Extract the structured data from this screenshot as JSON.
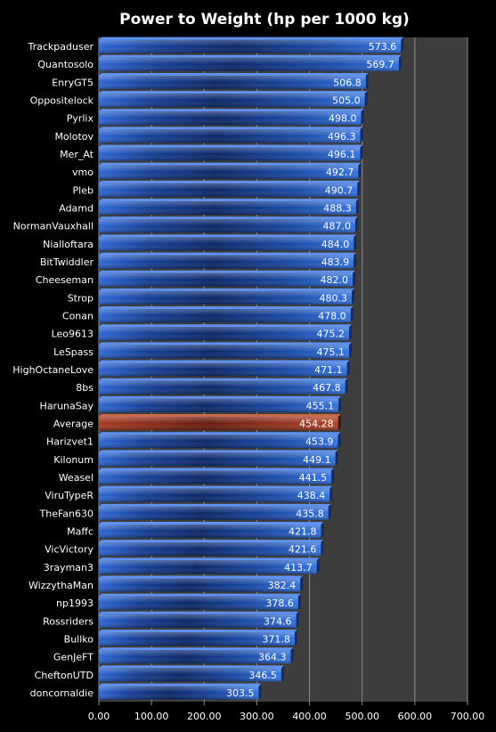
{
  "chart_data": {
    "type": "bar",
    "orientation": "horizontal",
    "title": "Power to Weight (hp per 1000 kg)",
    "categories": [
      "Trackpaduser",
      "Quantosolo",
      "EnryGT5",
      "Oppositelock",
      "Pyrlix",
      "Molotov",
      "Mer_At",
      "vmo",
      "Pleb",
      "Adamd",
      "NormanVauxhall",
      "Nialloftara",
      "BitTwiddler",
      "Cheeseman",
      "Strop",
      "Conan",
      "Leo9613",
      "LeSpass",
      "HighOctaneLove",
      "8bs",
      "HarunaSay",
      "Average",
      "Harizvet1",
      "Kilonum",
      "Weasel",
      "ViruTypeR",
      "TheFan630",
      "Maffc",
      "VicVictory",
      "3rayman3",
      "WizzythaMan",
      "np1993",
      "Rossriders",
      "Bullko",
      "GenJeFT",
      "CheftonUTD",
      "doncornaldie"
    ],
    "values": [
      573.6,
      569.7,
      506.8,
      505.0,
      498.0,
      496.3,
      496.1,
      492.7,
      490.7,
      488.3,
      487.0,
      484.0,
      483.9,
      482.0,
      480.3,
      478.0,
      475.2,
      475.1,
      471.1,
      467.8,
      455.1,
      454.28,
      453.9,
      449.1,
      441.5,
      438.4,
      435.8,
      421.8,
      421.6,
      413.7,
      382.4,
      378.6,
      374.6,
      371.8,
      364.3,
      346.5,
      303.5
    ],
    "value_labels": [
      "573.6",
      "569.7",
      "506.8",
      "505.0",
      "498.0",
      "496.3",
      "496.1",
      "492.7",
      "490.7",
      "488.3",
      "487.0",
      "484.0",
      "483.9",
      "482.0",
      "480.3",
      "478.0",
      "475.2",
      "475.1",
      "471.1",
      "467.8",
      "455.1",
      "454.28",
      "453.9",
      "449.1",
      "441.5",
      "438.4",
      "435.8",
      "421.8",
      "421.6",
      "413.7",
      "382.4",
      "378.6",
      "374.6",
      "371.8",
      "364.3",
      "346.5",
      "303.5"
    ],
    "highlight_category": "Average",
    "xlim": [
      0,
      700
    ],
    "xticks": [
      "0.00",
      "100.00",
      "200.00",
      "300.00",
      "400.00",
      "500.00",
      "600.00",
      "700.00"
    ],
    "grid": true,
    "colors": {
      "bar": "#1f4fa8",
      "highlight": "#8a2a1a",
      "plot_bg": "#3d3d3d",
      "page_bg": "#000000",
      "grid": "#8c8c8c",
      "text": "#ffffff"
    }
  }
}
